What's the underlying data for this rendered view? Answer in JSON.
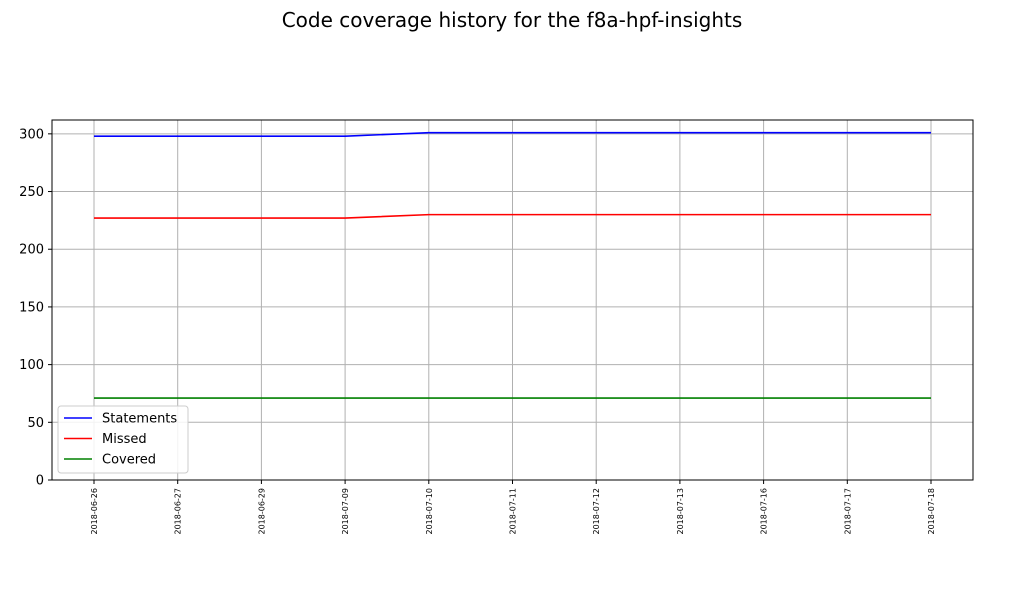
{
  "chart_data": {
    "type": "line",
    "title": "Code coverage history for the f8a-hpf-insights",
    "xlabel": "",
    "ylabel": "",
    "categories": [
      "2018-06-26",
      "2018-06-27",
      "2018-06-29",
      "2018-07-09",
      "2018-07-10",
      "2018-07-11",
      "2018-07-12",
      "2018-07-13",
      "2018-07-16",
      "2018-07-17",
      "2018-07-18"
    ],
    "yticks": [
      0,
      50,
      100,
      150,
      200,
      250,
      300
    ],
    "ylim": [
      0,
      312
    ],
    "grid": true,
    "legend_position": "lower-left",
    "series": [
      {
        "name": "Statements",
        "color": "#0000ff",
        "values": [
          298,
          298,
          298,
          298,
          301,
          301,
          301,
          301,
          301,
          301,
          301
        ]
      },
      {
        "name": "Missed",
        "color": "#ff0000",
        "values": [
          227,
          227,
          227,
          227,
          230,
          230,
          230,
          230,
          230,
          230,
          230
        ]
      },
      {
        "name": "Covered",
        "color": "#008000",
        "values": [
          71,
          71,
          71,
          71,
          71,
          71,
          71,
          71,
          71,
          71,
          71
        ]
      }
    ]
  }
}
